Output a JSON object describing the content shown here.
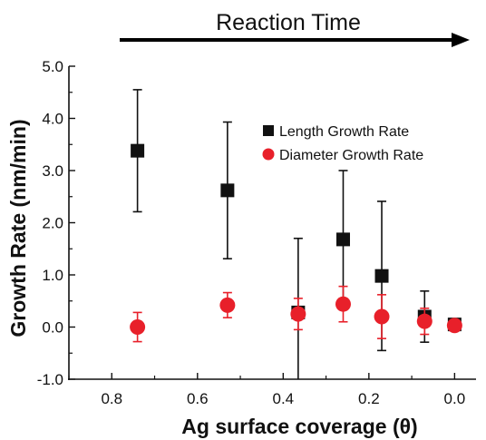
{
  "chart_data": {
    "type": "scatter",
    "title": "",
    "annotation": "Reaction Time",
    "xlabel": "Ag surface coverage (θ)",
    "ylabel": "Growth Rate (nm/min)",
    "xlim": [
      0.9,
      -0.05
    ],
    "ylim": [
      -1.0,
      5.0
    ],
    "x_reversed": true,
    "xticks": [
      0.8,
      0.6,
      0.4,
      0.2,
      0.0
    ],
    "xtick_labels": [
      "0.8",
      "0.6",
      "0.4",
      "0.2",
      "0.0"
    ],
    "yticks": [
      -1.0,
      0.0,
      1.0,
      2.0,
      3.0,
      4.0,
      5.0
    ],
    "ytick_labels": [
      "-1.0",
      "0.0",
      "1.0",
      "2.0",
      "3.0",
      "4.0",
      "5.0"
    ],
    "grid": false,
    "legend_position": "top-right",
    "series": [
      {
        "name": "Length Growth Rate",
        "marker": "square",
        "color": "#111111",
        "points": [
          {
            "x": 0.74,
            "y": 3.38,
            "err": 1.17
          },
          {
            "x": 0.53,
            "y": 2.62,
            "err": 1.31
          },
          {
            "x": 0.365,
            "y": 0.28,
            "err": 1.42
          },
          {
            "x": 0.26,
            "y": 1.68,
            "err": 1.32
          },
          {
            "x": 0.17,
            "y": 0.98,
            "err": 1.43
          },
          {
            "x": 0.07,
            "y": 0.2,
            "err": 0.49
          },
          {
            "x": 0.0,
            "y": 0.05,
            "err": 0.0
          }
        ]
      },
      {
        "name": "Diameter Growth Rate",
        "marker": "circle",
        "color": "#e8202a",
        "points": [
          {
            "x": 0.74,
            "y": 0.0,
            "err": 0.28
          },
          {
            "x": 0.53,
            "y": 0.42,
            "err": 0.24
          },
          {
            "x": 0.365,
            "y": 0.25,
            "err": 0.3
          },
          {
            "x": 0.26,
            "y": 0.44,
            "err": 0.34
          },
          {
            "x": 0.17,
            "y": 0.2,
            "err": 0.42
          },
          {
            "x": 0.07,
            "y": 0.11,
            "err": 0.25
          },
          {
            "x": 0.0,
            "y": 0.03,
            "err": 0.05
          }
        ]
      }
    ]
  }
}
